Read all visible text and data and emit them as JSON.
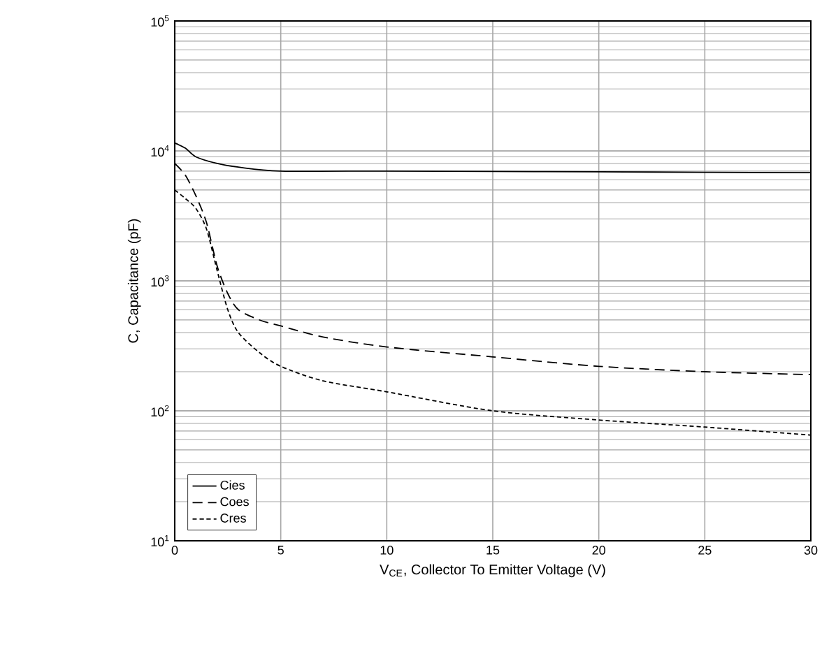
{
  "chart_data": {
    "type": "line",
    "xlabel": "V$_{CE}$, Collector To Emitter Voltage (V)",
    "ylabel": "C, Capacitance (pF)",
    "log": "y",
    "grid": true,
    "legend": "bottom left",
    "marker": "none",
    "xlim": [
      0,
      30
    ],
    "xticks": [
      0,
      5,
      10,
      15,
      20,
      25,
      30
    ],
    "ylim": [
      10,
      100000
    ],
    "yticks": [
      {
        "value": 10,
        "label": "10$^{1}$"
      },
      {
        "value": 100,
        "label": "10$^{2}$"
      },
      {
        "value": 1000,
        "label": "10$^{3}$"
      },
      {
        "value": 10000,
        "label": "10$^{4}$"
      },
      {
        "value": 100000,
        "label": "10$^{5}$"
      }
    ],
    "series": [
      {
        "name": "Cies",
        "color": "#000000",
        "line_style": "solid",
        "x": [
          0,
          0.5,
          1,
          2,
          3,
          5,
          10,
          15,
          20,
          25,
          30
        ],
        "values": [
          11500,
          10500,
          9000,
          8000,
          7500,
          7000,
          7000,
          6950,
          6900,
          6850,
          6800
        ]
      },
      {
        "name": "Coes",
        "color": "#000000",
        "line_style": "dashed",
        "x": [
          0,
          0.5,
          1,
          1.5,
          2,
          2.5,
          3,
          4,
          5,
          7,
          10,
          15,
          20,
          25,
          30
        ],
        "values": [
          8000,
          6500,
          4500,
          2800,
          1300,
          800,
          600,
          500,
          450,
          370,
          310,
          260,
          220,
          200,
          190
        ]
      },
      {
        "name": "Cres",
        "color": "#000000",
        "line_style": "dotted",
        "x": [
          0,
          0.5,
          1,
          1.5,
          2,
          2.5,
          3,
          4,
          5,
          7,
          10,
          15,
          20,
          25,
          30
        ],
        "values": [
          5000,
          4300,
          3600,
          2500,
          1200,
          600,
          400,
          280,
          220,
          170,
          140,
          100,
          85,
          75,
          65
        ]
      }
    ]
  }
}
